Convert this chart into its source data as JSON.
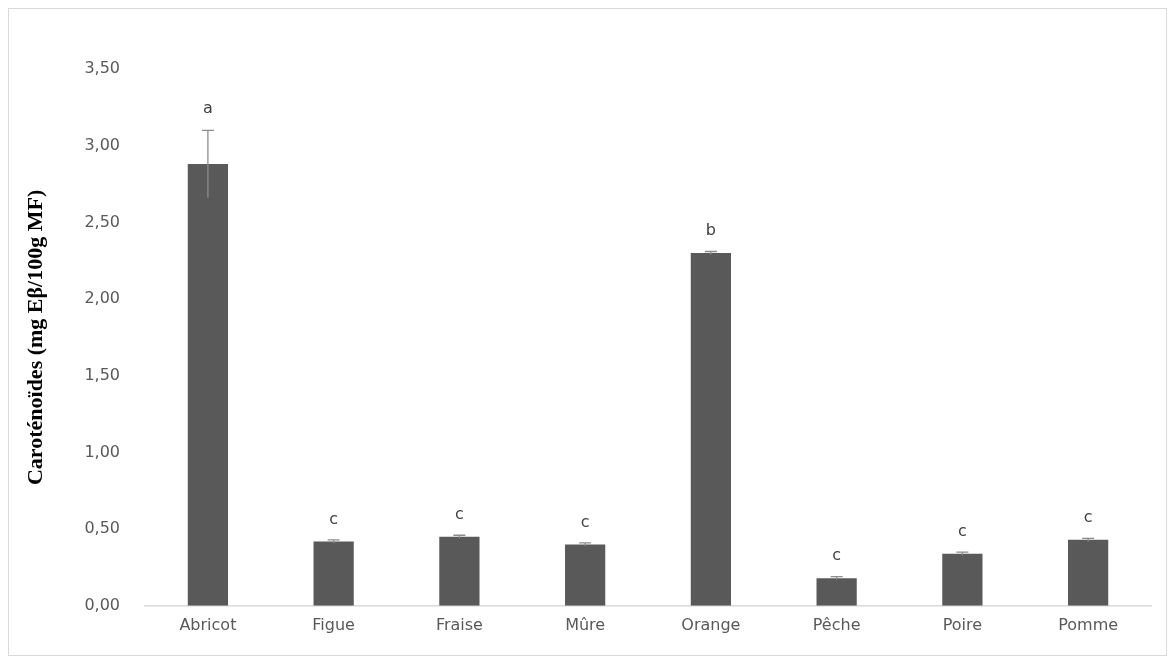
{
  "chart_data": {
    "type": "bar",
    "ylabel": "Caroténoïdes (mg Eβ/100g MF)",
    "categories": [
      "Abricot",
      "Figue",
      "Fraise",
      "Mûre",
      "Orange",
      "Pêche",
      "Poire",
      "Pomme"
    ],
    "values": [
      2.88,
      0.42,
      0.45,
      0.4,
      2.3,
      0.18,
      0.34,
      0.43
    ],
    "errors": [
      0.22,
      0.01,
      0.01,
      0.01,
      0.01,
      0.01,
      0.01,
      0.01
    ],
    "color": "#595959",
    "ylim": [
      0,
      3.5
    ],
    "yticks": [
      {
        "value": 0,
        "label": "0,00"
      },
      {
        "value": 0.5,
        "label": "0,50"
      },
      {
        "value": 1,
        "label": "1,00"
      },
      {
        "value": 1.5,
        "label": "1,50"
      },
      {
        "value": 2,
        "label": "2,00"
      },
      {
        "value": 2.5,
        "label": "2,50"
      },
      {
        "value": 3,
        "label": "3,00"
      },
      {
        "value": 3.5,
        "label": "3,50"
      }
    ],
    "grid": false,
    "annotations": [
      {
        "text": "a",
        "x": "Abricot",
        "y": 3.1
      },
      {
        "text": "c",
        "x": "Figue",
        "y": 0.42
      },
      {
        "text": "c",
        "x": "Fraise",
        "y": 0.45
      },
      {
        "text": "c",
        "x": "Mûre",
        "y": 0.4
      },
      {
        "text": "b",
        "x": "Orange",
        "y": 2.3
      },
      {
        "text": "c",
        "x": "Pêche",
        "y": 0.18
      },
      {
        "text": "c",
        "x": "Poire",
        "y": 0.34
      },
      {
        "text": "c",
        "x": "Pomme",
        "y": 0.43
      }
    ]
  }
}
